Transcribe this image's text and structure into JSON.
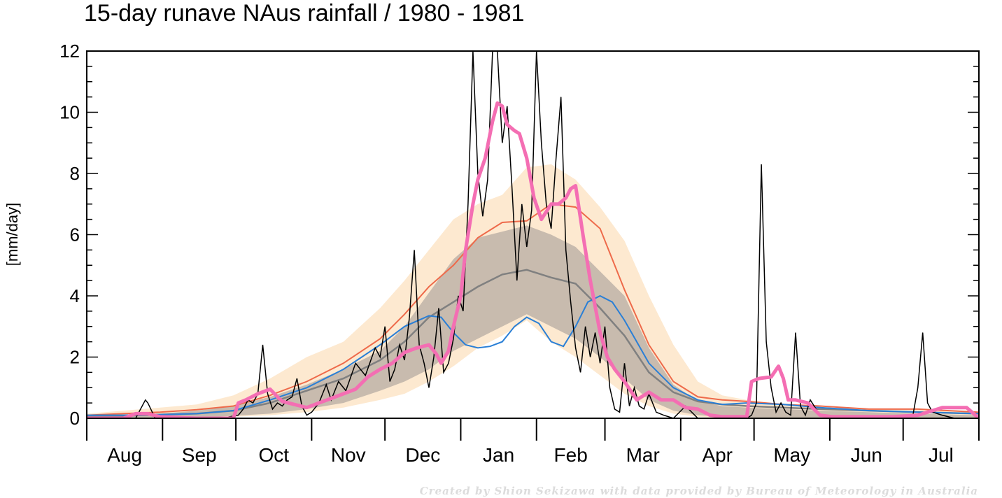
{
  "title": "15-day runave NAus rainfall  /  1980 - 1981",
  "credit": "Created by Shion Sekizawa with data provided by Bureau of Meteorology in Australia",
  "chart_data": {
    "type": "line",
    "title": "15-day runave NAus rainfall  /  1980 - 1981",
    "ylabel": "[mm/day]",
    "xlabel": "",
    "ylim": [
      0,
      12
    ],
    "xlim": [
      0,
      365
    ],
    "y_ticks": [
      0,
      2,
      4,
      6,
      8,
      10,
      12
    ],
    "grid": false,
    "months": [
      {
        "label": "Aug",
        "start": 0
      },
      {
        "label": "Sep",
        "start": 31
      },
      {
        "label": "Oct",
        "start": 61
      },
      {
        "label": "Nov",
        "start": 92
      },
      {
        "label": "Dec",
        "start": 122
      },
      {
        "label": "Jan",
        "start": 153
      },
      {
        "label": "Feb",
        "start": 184
      },
      {
        "label": "Mar",
        "start": 212
      },
      {
        "label": "Apr",
        "start": 243
      },
      {
        "label": "May",
        "start": 273
      },
      {
        "label": "Jun",
        "start": 304
      },
      {
        "label": "Jul",
        "start": 334
      }
    ],
    "colors": {
      "outer_band": "#fde9d0",
      "inner_band": "#c8bbae",
      "climatology_median": "#808080",
      "climatology_mean": "#ee6a4a",
      "comparison": "#2a7fd6",
      "daily": "#000000",
      "runave": "#f46eb3"
    },
    "series": [
      {
        "role": "outer_band",
        "x": [
          0,
          15,
          30,
          45,
          60,
          75,
          90,
          105,
          120,
          130,
          140,
          150,
          160,
          170,
          180,
          190,
          200,
          210,
          220,
          230,
          240,
          250,
          260,
          270,
          285,
          300,
          320,
          340,
          365
        ],
        "upper": [
          0.15,
          0.25,
          0.35,
          0.45,
          0.75,
          1.3,
          2.0,
          2.5,
          3.6,
          4.5,
          5.5,
          6.5,
          7.0,
          7.3,
          8.2,
          8.3,
          7.8,
          6.9,
          5.8,
          4.0,
          2.4,
          1.2,
          0.75,
          0.6,
          0.45,
          0.35,
          0.3,
          0.3,
          0.2
        ],
        "lower": [
          0.0,
          0.0,
          0.0,
          0.0,
          0.05,
          0.1,
          0.2,
          0.35,
          0.6,
          0.8,
          1.2,
          1.7,
          2.3,
          2.7,
          3.2,
          2.5,
          2.0,
          1.4,
          0.8,
          0.4,
          0.15,
          0.05,
          0.0,
          0.0,
          0.0,
          0.0,
          0.0,
          0.0,
          0.0
        ]
      },
      {
        "role": "inner_band",
        "x": [
          0,
          15,
          30,
          45,
          60,
          75,
          90,
          105,
          120,
          130,
          140,
          150,
          160,
          170,
          180,
          190,
          200,
          210,
          220,
          230,
          240,
          250,
          260,
          270,
          285,
          300,
          320,
          340,
          365
        ],
        "upper": [
          0.05,
          0.1,
          0.15,
          0.25,
          0.4,
          0.7,
          1.1,
          1.6,
          2.2,
          3.0,
          4.1,
          5.2,
          5.9,
          6.1,
          6.3,
          6.0,
          5.6,
          4.8,
          4.0,
          2.3,
          1.1,
          0.55,
          0.4,
          0.35,
          0.3,
          0.25,
          0.2,
          0.15,
          0.1
        ],
        "lower": [
          0.0,
          0.0,
          0.0,
          0.02,
          0.08,
          0.15,
          0.3,
          0.5,
          0.9,
          1.2,
          1.6,
          2.2,
          2.6,
          3.0,
          3.4,
          3.0,
          2.6,
          2.0,
          1.3,
          0.6,
          0.25,
          0.1,
          0.05,
          0.02,
          0.0,
          0.0,
          0.0,
          0.0,
          0.0
        ]
      },
      {
        "role": "climatology_median",
        "x": [
          0,
          15,
          30,
          45,
          60,
          75,
          90,
          105,
          120,
          130,
          140,
          150,
          160,
          170,
          180,
          190,
          200,
          210,
          220,
          230,
          240,
          250,
          260,
          270,
          285,
          300,
          320,
          340,
          365
        ],
        "y": [
          0.05,
          0.08,
          0.12,
          0.15,
          0.25,
          0.5,
          0.9,
          1.3,
          1.9,
          2.5,
          3.3,
          3.8,
          4.3,
          4.7,
          4.85,
          4.6,
          4.4,
          3.6,
          2.7,
          1.5,
          0.85,
          0.55,
          0.45,
          0.4,
          0.35,
          0.3,
          0.25,
          0.2,
          0.15
        ]
      },
      {
        "role": "climatology_mean",
        "x": [
          0,
          15,
          30,
          45,
          60,
          75,
          90,
          105,
          120,
          130,
          140,
          150,
          160,
          170,
          180,
          190,
          200,
          210,
          220,
          230,
          240,
          250,
          260,
          270,
          285,
          300,
          320,
          340,
          365
        ],
        "y": [
          0.1,
          0.15,
          0.2,
          0.28,
          0.4,
          0.75,
          1.2,
          1.8,
          2.6,
          3.4,
          4.3,
          5.0,
          5.9,
          6.4,
          6.45,
          7.0,
          6.9,
          6.2,
          4.2,
          2.4,
          1.2,
          0.7,
          0.6,
          0.55,
          0.45,
          0.4,
          0.3,
          0.3,
          0.2
        ]
      },
      {
        "role": "comparison",
        "x": [
          0,
          15,
          30,
          45,
          60,
          75,
          90,
          105,
          120,
          130,
          140,
          145,
          150,
          155,
          160,
          165,
          170,
          175,
          180,
          185,
          190,
          195,
          200,
          205,
          210,
          215,
          220,
          225,
          230,
          240,
          250,
          260,
          270,
          285,
          300,
          320,
          340,
          365
        ],
        "y": [
          0.1,
          0.1,
          0.12,
          0.15,
          0.25,
          0.6,
          1.0,
          1.6,
          2.4,
          3.0,
          3.35,
          3.3,
          2.8,
          2.4,
          2.3,
          2.35,
          2.5,
          3.0,
          3.3,
          3.1,
          2.5,
          2.35,
          3.0,
          3.8,
          4.0,
          3.8,
          3.2,
          2.5,
          1.8,
          1.0,
          0.6,
          0.45,
          0.5,
          0.45,
          0.35,
          0.25,
          0.2,
          0.15
        ]
      },
      {
        "role": "daily",
        "x": [
          0,
          20,
          24,
          25,
          28,
          30,
          40,
          55,
          62,
          64,
          66,
          68,
          70,
          72,
          74,
          76,
          78,
          80,
          82,
          84,
          86,
          88,
          90,
          92,
          95,
          98,
          100,
          103,
          106,
          110,
          114,
          118,
          120,
          122,
          124,
          126,
          128,
          130,
          132,
          134,
          136,
          138,
          140,
          142,
          144,
          146,
          148,
          150,
          152,
          154,
          156,
          158,
          160,
          162,
          164,
          166,
          168,
          170,
          172,
          174,
          176,
          178,
          180,
          182,
          184,
          186,
          188,
          190,
          192,
          194,
          196,
          198,
          200,
          202,
          204,
          206,
          208,
          210,
          212,
          214,
          216,
          218,
          220,
          222,
          224,
          226,
          228,
          230,
          233,
          236,
          240,
          245,
          250,
          255,
          260,
          265,
          270,
          272,
          274,
          276,
          278,
          280,
          282,
          284,
          286,
          288,
          290,
          292,
          294,
          296,
          300,
          305,
          310,
          320,
          330,
          338,
          340,
          342,
          344,
          346,
          350,
          355,
          360,
          365
        ],
        "y": [
          0.0,
          0.0,
          0.6,
          0.5,
          0.0,
          0.0,
          0.0,
          0.0,
          0.1,
          0.3,
          0.6,
          0.5,
          0.8,
          2.4,
          0.8,
          0.3,
          0.5,
          0.4,
          0.6,
          0.7,
          1.3,
          0.4,
          0.1,
          0.2,
          0.5,
          1.1,
          0.6,
          1.2,
          0.9,
          1.8,
          1.4,
          2.3,
          2.0,
          3.0,
          1.2,
          1.6,
          2.4,
          1.9,
          3.3,
          5.5,
          2.4,
          1.8,
          1.0,
          2.0,
          3.6,
          1.5,
          1.8,
          2.6,
          4.0,
          3.5,
          7.0,
          12.0,
          8.0,
          6.6,
          7.8,
          12.0,
          12.0,
          9.0,
          10.2,
          7.5,
          4.5,
          7.0,
          5.6,
          6.8,
          12.0,
          9.0,
          7.0,
          6.2,
          8.5,
          10.5,
          5.5,
          3.8,
          2.3,
          1.5,
          3.0,
          2.0,
          2.8,
          1.8,
          3.0,
          1.0,
          0.3,
          0.2,
          1.8,
          0.4,
          1.0,
          0.4,
          0.3,
          0.8,
          0.2,
          0.1,
          0.0,
          0.4,
          0.0,
          0.0,
          0.0,
          0.0,
          0.0,
          0.1,
          0.5,
          8.3,
          2.5,
          1.0,
          0.2,
          0.5,
          0.2,
          0.1,
          2.8,
          0.4,
          0.1,
          0.6,
          0.1,
          0.0,
          0.0,
          0.0,
          0.0,
          0.1,
          1.0,
          2.8,
          0.5,
          0.2,
          0.1,
          0.0,
          0.0,
          0.0
        ]
      },
      {
        "role": "runave",
        "x": [
          0,
          10,
          15,
          20,
          25,
          30,
          45,
          60,
          62,
          65,
          70,
          75,
          78,
          80,
          85,
          90,
          95,
          100,
          105,
          110,
          115,
          120,
          125,
          130,
          135,
          140,
          143,
          145,
          148,
          150,
          153,
          155,
          158,
          160,
          163,
          166,
          168,
          170,
          172,
          175,
          177,
          180,
          183,
          186,
          190,
          193,
          196,
          198,
          200,
          203,
          206,
          210,
          213,
          216,
          220,
          225,
          230,
          235,
          240,
          245,
          250,
          255,
          260,
          265,
          270,
          272,
          275,
          280,
          283,
          285,
          287,
          290,
          295,
          300,
          305,
          310,
          320,
          330,
          340,
          350,
          360,
          365
        ],
        "y": [
          0.0,
          0.0,
          0.0,
          0.15,
          0.15,
          0.05,
          0.0,
          0.0,
          0.5,
          0.6,
          0.8,
          0.95,
          0.7,
          0.55,
          0.45,
          0.35,
          0.5,
          0.65,
          0.8,
          0.95,
          1.35,
          1.6,
          1.8,
          2.15,
          2.3,
          2.4,
          2.1,
          1.8,
          2.2,
          3.0,
          4.0,
          5.5,
          7.0,
          7.8,
          8.5,
          9.7,
          10.3,
          10.2,
          9.6,
          9.4,
          9.3,
          8.5,
          7.2,
          6.5,
          7.0,
          7.0,
          7.2,
          7.5,
          7.6,
          6.0,
          4.5,
          2.8,
          2.0,
          1.6,
          1.2,
          0.6,
          0.85,
          0.6,
          0.6,
          0.35,
          0.3,
          0.1,
          0.05,
          0.05,
          0.05,
          1.2,
          1.3,
          1.35,
          1.7,
          1.3,
          0.6,
          0.6,
          0.5,
          0.1,
          0.05,
          0.05,
          0.05,
          0.05,
          0.1,
          0.35,
          0.35,
          0.0
        ]
      }
    ]
  }
}
